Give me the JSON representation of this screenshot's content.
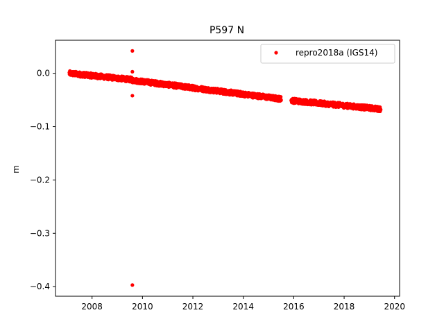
{
  "chart_data": {
    "type": "scatter",
    "title": "P597 N",
    "xlabel": "",
    "ylabel": "m",
    "xlim": [
      2006.55,
      2020.2
    ],
    "ylim": [
      -0.418,
      0.062
    ],
    "x_ticks": [
      2008,
      2010,
      2012,
      2014,
      2016,
      2018,
      2020
    ],
    "y_ticks": [
      0.0,
      -0.1,
      -0.2,
      -0.3,
      -0.4
    ],
    "y_tick_labels": [
      "0.0",
      "−0.1",
      "−0.2",
      "−0.3",
      "−0.4"
    ],
    "grid": false,
    "legend_position": "top-right",
    "series": [
      {
        "name": "repro2018a (IGS14)",
        "color": "#ff0000",
        "marker": "dot",
        "segments": [
          {
            "x_start": 2007.1,
            "x_end": 2009.6,
            "y_start": 0.0,
            "y_end": -0.012
          },
          {
            "x_start": 2009.6,
            "x_end": 2015.5,
            "y_start": -0.013,
            "y_end": -0.048
          },
          {
            "x_start": 2015.9,
            "x_end": 2019.45,
            "y_start": -0.051,
            "y_end": -0.067
          }
        ],
        "outliers": [
          {
            "x": 2009.6,
            "y": 0.042
          },
          {
            "x": 2009.6,
            "y": 0.003
          },
          {
            "x": 2009.6,
            "y": -0.042
          },
          {
            "x": 2009.6,
            "y": -0.397
          }
        ]
      }
    ]
  }
}
